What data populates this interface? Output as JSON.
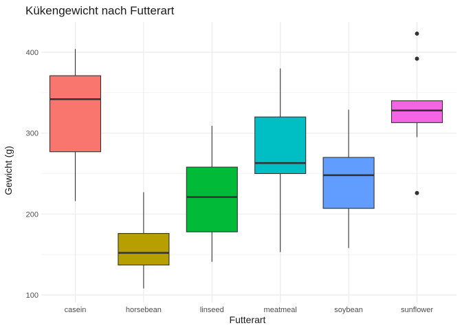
{
  "chart_data": {
    "type": "boxplot",
    "title": "Kükengewicht nach Futterart",
    "xlabel": "Futterart",
    "ylabel": "Gewicht (g)",
    "ylim": [
      95,
      435
    ],
    "yticks": [
      100,
      200,
      300,
      400
    ],
    "grid": true,
    "legend": "none",
    "categories": [
      "casein",
      "horsebean",
      "linseed",
      "meatmeal",
      "soybean",
      "sunflower"
    ],
    "boxes": [
      {
        "category": "casein",
        "color": "#F8766D",
        "whisker_low": 216,
        "q1": 277,
        "median": 342,
        "q3": 371,
        "whisker_high": 404,
        "outliers": []
      },
      {
        "category": "horsebean",
        "color": "#B79F00",
        "whisker_low": 108,
        "q1": 137,
        "median": 152,
        "q3": 176,
        "whisker_high": 227,
        "outliers": []
      },
      {
        "category": "linseed",
        "color": "#00BA38",
        "whisker_low": 141,
        "q1": 178,
        "median": 221,
        "q3": 258,
        "whisker_high": 309,
        "outliers": []
      },
      {
        "category": "meatmeal",
        "color": "#00BFC4",
        "whisker_low": 153,
        "q1": 250,
        "median": 263,
        "q3": 320,
        "whisker_high": 380,
        "outliers": []
      },
      {
        "category": "soybean",
        "color": "#619CFF",
        "whisker_low": 158,
        "q1": 207,
        "median": 248,
        "q3": 270,
        "whisker_high": 329,
        "outliers": []
      },
      {
        "category": "sunflower",
        "color": "#F564E3",
        "whisker_low": 295,
        "q1": 313,
        "median": 328,
        "q3": 340,
        "whisker_high": 340,
        "outliers": [
          226,
          392,
          423
        ]
      }
    ]
  }
}
